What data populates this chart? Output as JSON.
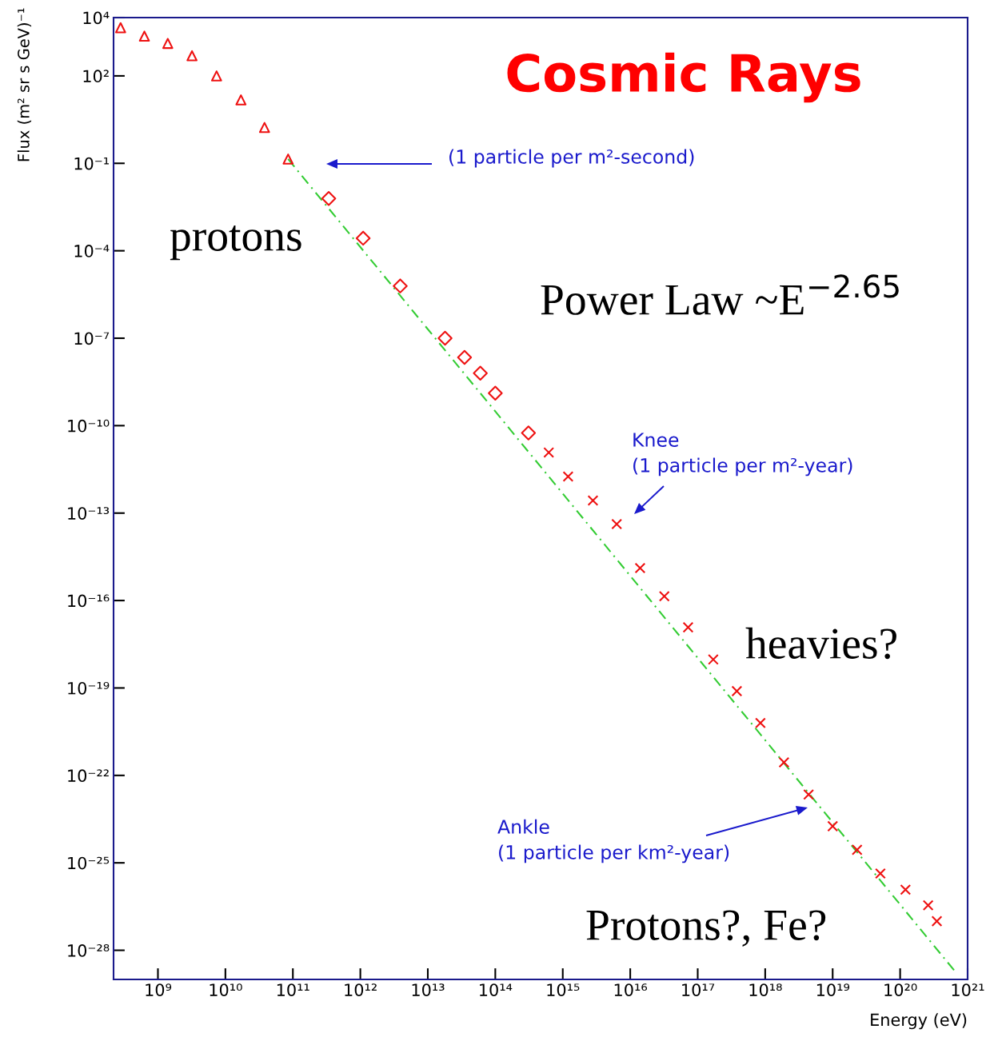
{
  "chart_data": {
    "type": "scatter",
    "title": "Cosmic Rays",
    "xlabel": "Energy (eV)",
    "ylabel": "Flux (m² sr s GeV)⁻¹",
    "log": "xy",
    "grid": false,
    "legend": false,
    "xlim": [
      220000000.0,
      1e+21
    ],
    "ylim": [
      1e-29,
      10000.0
    ],
    "xticks": [
      {
        "value": 1000000000.0,
        "label": "10⁹"
      },
      {
        "value": 10000000000.0,
        "label": "10¹⁰"
      },
      {
        "value": 100000000000.0,
        "label": "10¹¹"
      },
      {
        "value": 1000000000000.0,
        "label": "10¹²"
      },
      {
        "value": 10000000000000.0,
        "label": "10¹³"
      },
      {
        "value": 100000000000000.0,
        "label": "10¹⁴"
      },
      {
        "value": 1000000000000000.0,
        "label": "10¹⁵"
      },
      {
        "value": 1e+16,
        "label": "10¹⁶"
      },
      {
        "value": 1e+17,
        "label": "10¹⁷"
      },
      {
        "value": 1e+18,
        "label": "10¹⁸"
      },
      {
        "value": 1e+19,
        "label": "10¹⁹"
      },
      {
        "value": 1e+20,
        "label": "10²⁰"
      },
      {
        "value": 1e+21,
        "label": "10²¹"
      }
    ],
    "yticks": [
      {
        "value": 10000.0,
        "label": "10⁴"
      },
      {
        "value": 100.0,
        "label": "10²"
      },
      {
        "value": 0.1,
        "label": "10⁻¹"
      },
      {
        "value": 0.0001,
        "label": "10⁻⁴"
      },
      {
        "value": 1e-07,
        "label": "10⁻⁷"
      },
      {
        "value": 1e-10,
        "label": "10⁻¹⁰"
      },
      {
        "value": 1e-13,
        "label": "10⁻¹³"
      },
      {
        "value": 1e-16,
        "label": "10⁻¹⁶"
      },
      {
        "value": 1e-19,
        "label": "10⁻¹⁹"
      },
      {
        "value": 1e-22,
        "label": "10⁻²²"
      },
      {
        "value": 1e-25,
        "label": "10⁻²⁵"
      },
      {
        "value": 1e-28,
        "label": "10⁻²⁸"
      }
    ],
    "series": [
      {
        "type": "line",
        "color": "#33cc33",
        "line_style": "dashed",
        "marker": "none",
        "x": [
          85000000000.0,
          6.9e+20
        ],
        "values": [
          0.14,
          1.6e-29
        ]
      },
      {
        "color": "#ee1111",
        "marker": "triangle",
        "x": [
          280000000.0,
          630000000.0,
          1400000000.0,
          3200000000.0,
          7400000000.0,
          17000000000.0,
          38000000000.0,
          85000000000.0
        ],
        "values": [
          4500,
          2300,
          1300,
          490,
          100,
          15,
          1.7,
          0.14
        ]
      },
      {
        "color": "#ee1111",
        "marker": "diamond",
        "x": [
          340000000000.0,
          1100000000000.0,
          3900000000000.0,
          18000000000000.0,
          35000000000000.0,
          60000000000000.0,
          100000000000000.0,
          310000000000000.0
        ],
        "values": [
          0.0062,
          0.00027,
          6.2e-06,
          1e-07,
          2.2e-08,
          6.3e-09,
          1.3e-09,
          5.6e-11
        ]
      },
      {
        "color": "#ee1111",
        "marker": "cross",
        "x": [
          620000000000000.0,
          1200000000000000.0,
          2800000000000000.0,
          6300000000000000.0,
          1.4e+16,
          3.2e+16,
          7.2e+16,
          1.7e+17,
          3.8e+17,
          8.5e+17,
          1.9e+18,
          4.4e+18,
          1e+19,
          2.3e+19,
          5.1e+19,
          1.2e+20,
          2.6e+20,
          3.5e+20
        ],
        "values": [
          1.2e-11,
          1.8e-12,
          2.7e-13,
          4.2e-14,
          1.3e-15,
          1.4e-16,
          1.2e-17,
          9.5e-19,
          7.8e-20,
          6.3e-21,
          2.8e-22,
          2.2e-23,
          1.8e-24,
          2.8e-25,
          4.3e-26,
          1.2e-26,
          3.5e-27,
          1e-27
        ]
      }
    ],
    "annotations": [
      "(1 particle per m²-second)",
      "protons",
      "Power Law ~E$^{−2.65}$",
      "Knee\n(1 particle per m²-year)",
      "heavies?",
      "Ankle\n(1 particle per km²-year)",
      "Protons?, Fe?"
    ]
  }
}
